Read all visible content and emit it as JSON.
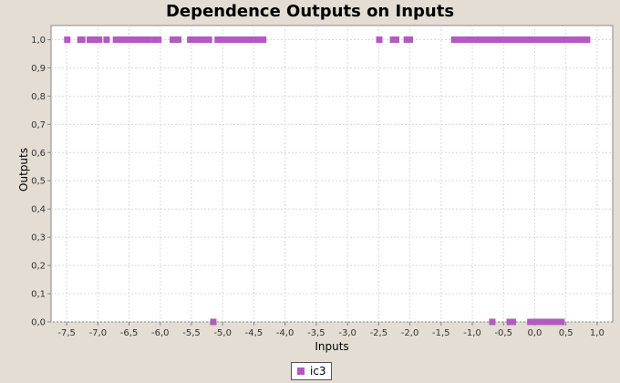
{
  "chart_data": {
    "type": "scatter",
    "title": "Dependence Outputs on Inputs",
    "xlabel": "Inputs",
    "ylabel": "Outputs",
    "xlim": [
      -7.75,
      1.25
    ],
    "ylim": [
      0.0,
      1.05
    ],
    "x_ticks": [
      "-7,5",
      "-7,0",
      "-6,5",
      "-6,0",
      "-5,5",
      "-5,0",
      "-4,5",
      "-4,0",
      "-3,5",
      "-3,0",
      "-2,5",
      "-2,0",
      "-1,5",
      "-1,0",
      "-0,5",
      "0,0",
      "0,5",
      "1,0"
    ],
    "x_tick_values": [
      -7.5,
      -7.0,
      -6.5,
      -6.0,
      -5.5,
      -5.0,
      -4.5,
      -4.0,
      -3.5,
      -3.0,
      -2.5,
      -2.0,
      -1.5,
      -1.0,
      -0.5,
      0.0,
      0.5,
      1.0
    ],
    "y_ticks": [
      "0,0",
      "0,1",
      "0,2",
      "0,3",
      "0,4",
      "0,5",
      "0,6",
      "0,7",
      "0,8",
      "0,9",
      "1,0"
    ],
    "y_tick_values": [
      0.0,
      0.1,
      0.2,
      0.3,
      0.4,
      0.5,
      0.6,
      0.7,
      0.8,
      0.9,
      1.0
    ],
    "grid": true,
    "legend_position": "bottom-center",
    "series": [
      {
        "name": "ic3",
        "color": "#b15bbf",
        "points": [
          [
            -7.49,
            1.0
          ],
          [
            -7.28,
            1.0
          ],
          [
            -7.25,
            1.0
          ],
          [
            -7.13,
            1.0
          ],
          [
            -7.1,
            1.0
          ],
          [
            -7.07,
            1.0
          ],
          [
            -7.04,
            1.0
          ],
          [
            -7.01,
            1.0
          ],
          [
            -6.98,
            1.0
          ],
          [
            -6.86,
            1.0
          ],
          [
            -6.71,
            1.0
          ],
          [
            -6.68,
            1.0
          ],
          [
            -6.64,
            1.0
          ],
          [
            -6.59,
            1.0
          ],
          [
            -6.55,
            1.0
          ],
          [
            -6.46,
            1.0
          ],
          [
            -6.42,
            1.0
          ],
          [
            -6.37,
            1.0
          ],
          [
            -6.33,
            1.0
          ],
          [
            -6.29,
            1.0
          ],
          [
            -6.25,
            1.0
          ],
          [
            -6.22,
            1.0
          ],
          [
            -6.19,
            1.0
          ],
          [
            -6.09,
            1.0
          ],
          [
            -6.03,
            1.0
          ],
          [
            -5.8,
            1.0
          ],
          [
            -5.76,
            1.0
          ],
          [
            -5.71,
            1.0
          ],
          [
            -5.52,
            1.0
          ],
          [
            -5.48,
            1.0
          ],
          [
            -5.43,
            1.0
          ],
          [
            -5.36,
            1.0
          ],
          [
            -5.31,
            1.0
          ],
          [
            -5.27,
            1.0
          ],
          [
            -5.22,
            1.0
          ],
          [
            -5.08,
            1.0
          ],
          [
            -5.03,
            1.0
          ],
          [
            -4.99,
            1.0
          ],
          [
            -4.95,
            1.0
          ],
          [
            -4.9,
            1.0
          ],
          [
            -4.85,
            1.0
          ],
          [
            -4.8,
            1.0
          ],
          [
            -4.75,
            1.0
          ],
          [
            -4.7,
            1.0
          ],
          [
            -4.65,
            1.0
          ],
          [
            -4.6,
            1.0
          ],
          [
            -4.55,
            1.0
          ],
          [
            -4.5,
            1.0
          ],
          [
            -4.45,
            1.0
          ],
          [
            -4.4,
            1.0
          ],
          [
            -4.35,
            1.0
          ],
          [
            -5.15,
            0.0
          ],
          [
            -2.49,
            1.0
          ],
          [
            -2.27,
            1.0
          ],
          [
            -2.22,
            1.0
          ],
          [
            -2.05,
            1.0
          ],
          [
            -2.0,
            1.0
          ],
          [
            -1.29,
            1.0
          ],
          [
            -1.25,
            1.0
          ],
          [
            -1.2,
            1.0
          ],
          [
            -1.15,
            1.0
          ],
          [
            -1.1,
            1.0
          ],
          [
            -1.05,
            1.0
          ],
          [
            -1.0,
            1.0
          ],
          [
            -0.95,
            1.0
          ],
          [
            -0.9,
            1.0
          ],
          [
            -0.85,
            1.0
          ],
          [
            -0.8,
            1.0
          ],
          [
            -0.75,
            1.0
          ],
          [
            -0.7,
            1.0
          ],
          [
            -0.65,
            1.0
          ],
          [
            -0.6,
            1.0
          ],
          [
            -0.55,
            1.0
          ],
          [
            -0.5,
            1.0
          ],
          [
            -0.45,
            1.0
          ],
          [
            -0.4,
            1.0
          ],
          [
            -0.35,
            1.0
          ],
          [
            -0.3,
            1.0
          ],
          [
            -0.25,
            1.0
          ],
          [
            -0.2,
            1.0
          ],
          [
            -0.15,
            1.0
          ],
          [
            -0.1,
            1.0
          ],
          [
            -0.05,
            1.0
          ],
          [
            0.0,
            1.0
          ],
          [
            0.05,
            1.0
          ],
          [
            0.1,
            1.0
          ],
          [
            0.15,
            1.0
          ],
          [
            0.2,
            1.0
          ],
          [
            0.25,
            1.0
          ],
          [
            0.3,
            1.0
          ],
          [
            0.35,
            1.0
          ],
          [
            0.4,
            1.0
          ],
          [
            0.45,
            1.0
          ],
          [
            0.5,
            1.0
          ],
          [
            0.55,
            1.0
          ],
          [
            0.6,
            1.0
          ],
          [
            0.65,
            1.0
          ],
          [
            0.7,
            1.0
          ],
          [
            0.75,
            1.0
          ],
          [
            0.8,
            1.0
          ],
          [
            0.84,
            1.0
          ],
          [
            -0.68,
            0.0
          ],
          [
            -0.4,
            0.0
          ],
          [
            -0.35,
            0.0
          ],
          [
            -0.07,
            0.0
          ],
          [
            -0.02,
            0.0
          ],
          [
            0.03,
            0.0
          ],
          [
            0.08,
            0.0
          ],
          [
            0.13,
            0.0
          ],
          [
            0.18,
            0.0
          ],
          [
            0.23,
            0.0
          ],
          [
            0.28,
            0.0
          ],
          [
            0.33,
            0.0
          ],
          [
            0.38,
            0.0
          ],
          [
            0.43,
            0.0
          ]
        ]
      }
    ]
  }
}
